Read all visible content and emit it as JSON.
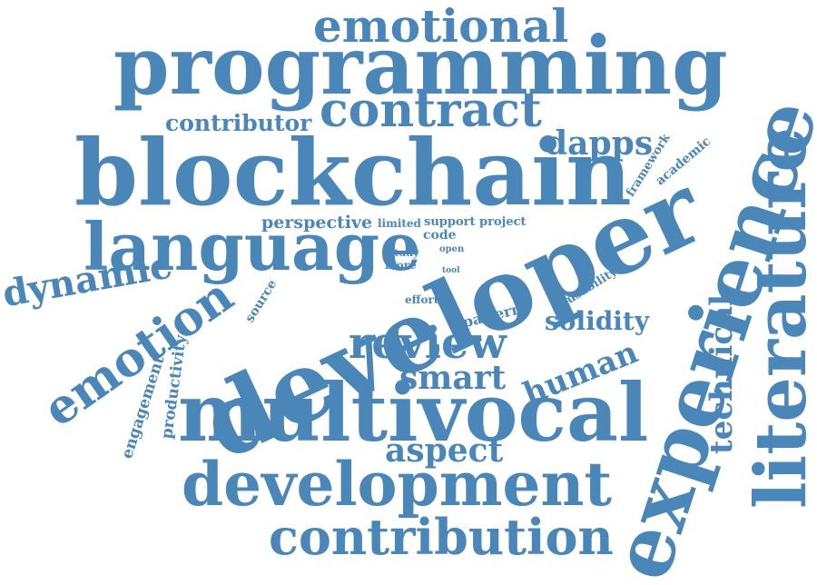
{
  "color": "#4a86b8",
  "words": [
    "emotional",
    "programming",
    "contributor",
    "contract",
    "blockchain",
    "dapps",
    "framework",
    "academic",
    "experience",
    "literature",
    "technical",
    "language",
    "perspective",
    "limited",
    "support",
    "project",
    "code",
    "study",
    "open",
    "more",
    "tool",
    "effort",
    "usability",
    "source",
    "dynamic",
    "emotion",
    "developer",
    "pattern",
    "solidity",
    "review",
    "human",
    "smart",
    "productivity",
    "engagement",
    "multivocal",
    "aspect",
    "development",
    "contribution"
  ]
}
